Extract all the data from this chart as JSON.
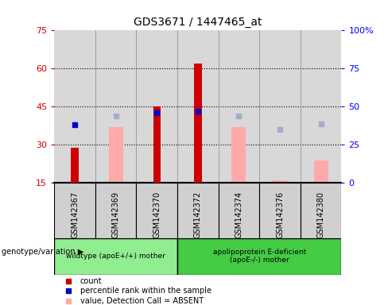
{
  "title": "GDS3671 / 1447465_at",
  "samples": [
    "GSM142367",
    "GSM142369",
    "GSM142370",
    "GSM142372",
    "GSM142374",
    "GSM142376",
    "GSM142380"
  ],
  "count_values": [
    29,
    null,
    45,
    62,
    null,
    null,
    null
  ],
  "count_color": "#cc0000",
  "percentile_rank": [
    38,
    null,
    46,
    47,
    null,
    null,
    null
  ],
  "percentile_rank_color": "#0000cc",
  "absent_value": [
    null,
    37,
    null,
    null,
    37,
    16,
    24
  ],
  "absent_value_color": "#ffaaaa",
  "absent_rank": [
    null,
    44,
    null,
    null,
    44,
    35,
    39
  ],
  "absent_rank_color": "#aaaacc",
  "ylim_left": [
    15,
    75
  ],
  "ylim_right": [
    0,
    100
  ],
  "yticks_left": [
    15,
    30,
    45,
    60,
    75
  ],
  "yticks_right": [
    0,
    25,
    50,
    75,
    100
  ],
  "ytick_right_labels": [
    "0",
    "25",
    "50",
    "75",
    "100%"
  ],
  "group1_n": 3,
  "group2_n": 4,
  "group1_label": "wildtype (apoE+/+) mother",
  "group2_label": "apolipoprotein E-deficient\n(apoE-/-) mother",
  "group1_color": "#90ee90",
  "group2_color": "#44cc44",
  "genotype_label": "genotype/variation",
  "legend_items": [
    {
      "label": "count",
      "color": "#cc0000"
    },
    {
      "label": "percentile rank within the sample",
      "color": "#0000cc"
    },
    {
      "label": "value, Detection Call = ABSENT",
      "color": "#ffaaaa"
    },
    {
      "label": "rank, Detection Call = ABSENT",
      "color": "#aaaacc"
    }
  ],
  "plot_bg_color": "#d8d8d8",
  "fig_bg_color": "#ffffff",
  "sample_box_color": "#d0d0d0",
  "gridline_color": "#000000",
  "vline_color": "#888888"
}
